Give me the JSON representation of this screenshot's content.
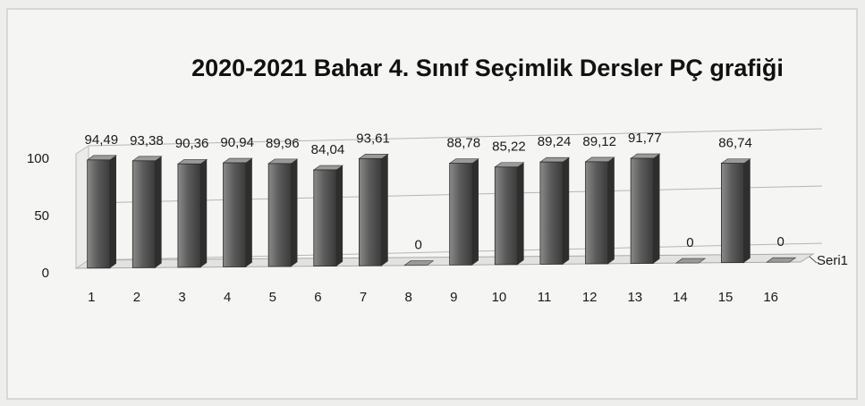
{
  "chart_data": {
    "type": "bar",
    "title": "2020-2021 Bahar 4. Sınıf Seçimlik Dersler PÇ grafiği",
    "categories": [
      "1",
      "2",
      "3",
      "4",
      "5",
      "6",
      "7",
      "8",
      "9",
      "10",
      "11",
      "12",
      "13",
      "14",
      "15",
      "16"
    ],
    "series": [
      {
        "name": "Seri1",
        "color": "#5a5a5a",
        "values": [
          94.49,
          93.38,
          90.36,
          90.94,
          89.96,
          84.04,
          93.61,
          0,
          88.78,
          85.22,
          89.24,
          89.12,
          91.77,
          0,
          86.74,
          0
        ],
        "value_labels": [
          "94,49",
          "93,38",
          "90,36",
          "90,94",
          "89,96",
          "84,04",
          "93,61",
          "0",
          "88,78",
          "85,22",
          "89,24",
          "89,12",
          "91,77",
          "0",
          "86,74",
          "0"
        ]
      }
    ],
    "ylim": [
      0,
      100
    ],
    "yticks": [
      0,
      50,
      100
    ],
    "grid": true
  }
}
